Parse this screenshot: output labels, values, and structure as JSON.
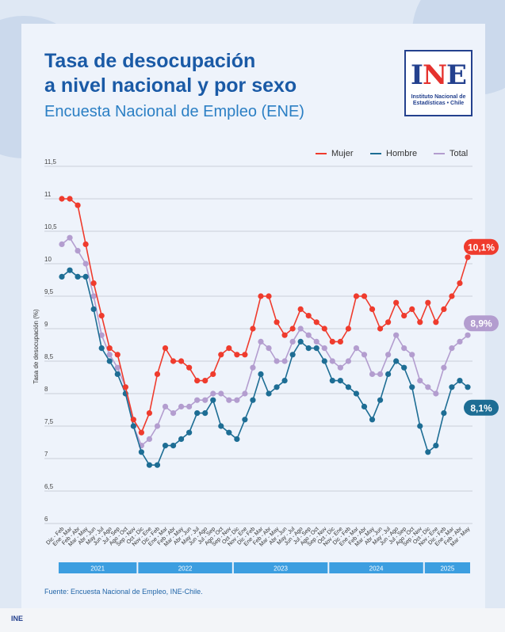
{
  "title_line1": "Tasa de desocupación",
  "title_line2": "a nivel nacional y por sexo",
  "subtitle": "Encuesta Nacional de Empleo (ENE)",
  "logo": {
    "mark_a": "I",
    "mark_b": "N",
    "mark_c": "E",
    "text_1": "Instituto Nacional de",
    "text_2": "Estadísticas • Chile"
  },
  "footer_logo": "INE",
  "source": "Fuente: Encuesta Nacional de Empleo, INE-Chile.",
  "colors": {
    "mujer": "#ef3b2d",
    "hombre": "#1d6d94",
    "total": "#b39dcf",
    "axis_band": "#3c9ee0",
    "grid": "#c9cfd8"
  },
  "chart_data": {
    "type": "line",
    "title": "Tasa de desocupación a nivel nacional y por sexo",
    "ylabel": "Tasa de desocupación (%)",
    "xlabel": "",
    "ylim": [
      6,
      11.5
    ],
    "yticks": [
      "6",
      "6,5",
      "7",
      "7,5",
      "8",
      "8,5",
      "9",
      "9,5",
      "10",
      "10,5",
      "11",
      "11,5"
    ],
    "legend_position": "top-right",
    "grid": true,
    "categories": [
      "Dic - Feb",
      "Ene - Mar",
      "Feb - Abr",
      "Mar - May",
      "Abr - Jun",
      "May - Jul",
      "Jun - Ago",
      "Jul - Sep",
      "Ago - Oct",
      "Sep - Nov",
      "Oct - Dic",
      "Nov - Ene",
      "Dic - Feb",
      "Ene - Mar",
      "Feb - Abr",
      "Mar - May",
      "Abr - Jun",
      "May - Jul",
      "Jun - Ago",
      "Jul - Sep",
      "Ago - Oct",
      "Sep - Nov",
      "Oct - Dic",
      "Nov - Ene",
      "Dic - Feb",
      "Ene - Mar",
      "Feb - Abr",
      "Mar - May",
      "Abr - Jun",
      "May - Jul",
      "Jun - Ago",
      "Jul - Sep",
      "Ago - Oct",
      "Sep - Nov",
      "Oct - Dic",
      "Nov - Ene",
      "Dic - Feb",
      "Ene - Mar",
      "Feb - Abr",
      "Mar - May",
      "Abr - Jun",
      "May - Jul",
      "Jun - Ago",
      "Jul - Sep",
      "Ago - Oct",
      "Sep - Nov",
      "Oct - Dic",
      "Nov - Ene",
      "Dic - Feb",
      "Ene - Mar",
      "Feb - Abr",
      "Mar - May"
    ],
    "year_bands": [
      {
        "label": "2021",
        "start": 0,
        "end": 9
      },
      {
        "label": "2022",
        "start": 10,
        "end": 21
      },
      {
        "label": "2023",
        "start": 22,
        "end": 33
      },
      {
        "label": "2024",
        "start": 34,
        "end": 45
      },
      {
        "label": "2025",
        "start": 46,
        "end": 51
      }
    ],
    "series": [
      {
        "name": "Mujer",
        "color": "#ef3b2d",
        "end_label": "10,1%",
        "values": [
          11.0,
          11.0,
          10.9,
          10.3,
          9.7,
          9.2,
          8.7,
          8.6,
          8.1,
          7.6,
          7.4,
          7.7,
          8.3,
          8.7,
          8.5,
          8.5,
          8.4,
          8.2,
          8.2,
          8.3,
          8.6,
          8.7,
          8.6,
          8.6,
          9.0,
          9.5,
          9.5,
          9.1,
          8.9,
          9.0,
          9.3,
          9.2,
          9.1,
          9.0,
          8.8,
          8.8,
          9.0,
          9.5,
          9.5,
          9.3,
          9.0,
          9.1,
          9.4,
          9.2,
          9.3,
          9.1,
          9.4,
          9.1,
          9.3,
          9.5,
          9.7,
          10.1
        ]
      },
      {
        "name": "Hombre",
        "color": "#1d6d94",
        "end_label": "8,1%",
        "values": [
          9.8,
          9.9,
          9.8,
          9.8,
          9.3,
          8.7,
          8.5,
          8.3,
          8.0,
          7.5,
          7.1,
          6.9,
          6.9,
          7.2,
          7.2,
          7.3,
          7.4,
          7.7,
          7.7,
          7.9,
          7.5,
          7.4,
          7.3,
          7.6,
          7.9,
          8.3,
          8.0,
          8.1,
          8.2,
          8.6,
          8.8,
          8.7,
          8.7,
          8.5,
          8.2,
          8.2,
          8.1,
          8.0,
          7.8,
          7.6,
          7.9,
          8.3,
          8.5,
          8.4,
          8.1,
          7.5,
          7.1,
          7.2,
          7.7,
          8.1,
          8.2,
          8.1
        ]
      },
      {
        "name": "Total",
        "color": "#b39dcf",
        "end_label": "8,9%",
        "values": [
          10.3,
          10.4,
          10.2,
          10.0,
          9.5,
          8.9,
          8.6,
          8.4,
          8.1,
          7.5,
          7.2,
          7.3,
          7.5,
          7.8,
          7.7,
          7.8,
          7.8,
          7.9,
          7.9,
          8.0,
          8.0,
          7.9,
          7.9,
          8.0,
          8.4,
          8.8,
          8.7,
          8.5,
          8.5,
          8.8,
          9.0,
          8.9,
          8.8,
          8.7,
          8.5,
          8.4,
          8.5,
          8.7,
          8.6,
          8.3,
          8.3,
          8.6,
          8.9,
          8.7,
          8.6,
          8.2,
          8.1,
          8.0,
          8.4,
          8.7,
          8.8,
          8.9
        ]
      }
    ]
  }
}
